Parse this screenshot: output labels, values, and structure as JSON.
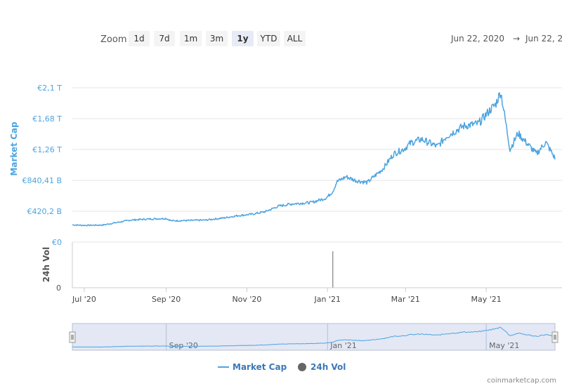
{
  "toolbar": {
    "zoom_label": "Zoom",
    "buttons": [
      {
        "label": "1d",
        "active": false
      },
      {
        "label": "7d",
        "active": false
      },
      {
        "label": "1m",
        "active": false
      },
      {
        "label": "3m",
        "active": false
      },
      {
        "label": "1y",
        "active": true
      },
      {
        "label": "YTD",
        "active": false
      },
      {
        "label": "ALL",
        "active": false
      }
    ],
    "range_from": "Jun 22, 2020",
    "range_arrow": "→",
    "range_to": "Jun 22, 2"
  },
  "colors": {
    "market_cap": "#4da4e0",
    "volume": "#666666",
    "navigator_fill": "#ccd6eb"
  },
  "credits": "coinmarketcap.com",
  "chart_data": [
    {
      "type": "line",
      "title": "",
      "ylabel": "Market Cap",
      "y_unit": "EUR",
      "y_tick_labels": [
        "€0",
        "€420,2 B",
        "€840,41 B",
        "€1,26 T",
        "€1,68 T",
        "€2,1 T"
      ],
      "y_tick_values": [
        0,
        420.2,
        840.41,
        1260,
        1680,
        2100
      ],
      "y_value_unit": "billion EUR",
      "ylim": [
        0,
        2300
      ],
      "x_tick_labels": [
        "Jul '20",
        "Sep '20",
        "Nov '20",
        "Jan '21",
        "Mar '21",
        "May '21"
      ],
      "x_tick_dates": [
        "2020-07-01",
        "2020-09-01",
        "2020-11-01",
        "2021-01-01",
        "2021-03-01",
        "2021-05-01"
      ],
      "xlim": [
        "2020-06-22",
        "2021-06-22"
      ],
      "grid": true,
      "legend": "bottom-center",
      "series": [
        {
          "name": "Market Cap",
          "x": [
            "2020-06-22",
            "2020-07-01",
            "2020-07-15",
            "2020-07-25",
            "2020-08-05",
            "2020-08-20",
            "2020-09-01",
            "2020-09-05",
            "2020-09-20",
            "2020-10-01",
            "2020-10-15",
            "2020-10-25",
            "2020-11-05",
            "2020-11-15",
            "2020-11-25",
            "2020-12-05",
            "2020-12-20",
            "2020-12-31",
            "2021-01-05",
            "2021-01-08",
            "2021-01-15",
            "2021-01-22",
            "2021-01-31",
            "2021-02-05",
            "2021-02-12",
            "2021-02-20",
            "2021-02-28",
            "2021-03-05",
            "2021-03-13",
            "2021-03-25",
            "2021-04-01",
            "2021-04-14",
            "2021-04-25",
            "2021-05-04",
            "2021-05-08",
            "2021-05-12",
            "2021-05-19",
            "2021-05-25",
            "2021-06-01",
            "2021-06-08",
            "2021-06-15",
            "2021-06-22"
          ],
          "values": [
            235,
            228,
            232,
            265,
            300,
            315,
            322,
            290,
            295,
            300,
            330,
            360,
            380,
            415,
            490,
            520,
            540,
            600,
            690,
            820,
            890,
            840,
            810,
            890,
            1000,
            1200,
            1270,
            1350,
            1400,
            1300,
            1440,
            1580,
            1610,
            1800,
            1870,
            2050,
            1260,
            1480,
            1340,
            1200,
            1360,
            1140
          ]
        }
      ]
    },
    {
      "type": "bar",
      "title": "",
      "ylabel": "24h Vol",
      "y_tick_labels": [
        "0"
      ],
      "series": [
        {
          "name": "24h Vol",
          "x": [
            "2021-01-05"
          ],
          "values": [
            1
          ]
        }
      ]
    }
  ],
  "navigator": {
    "tick_labels": [
      "Sep '20",
      "Jan '21",
      "May '21"
    ],
    "tick_dates": [
      "2020-09-01",
      "2021-01-01",
      "2021-05-01"
    ]
  }
}
